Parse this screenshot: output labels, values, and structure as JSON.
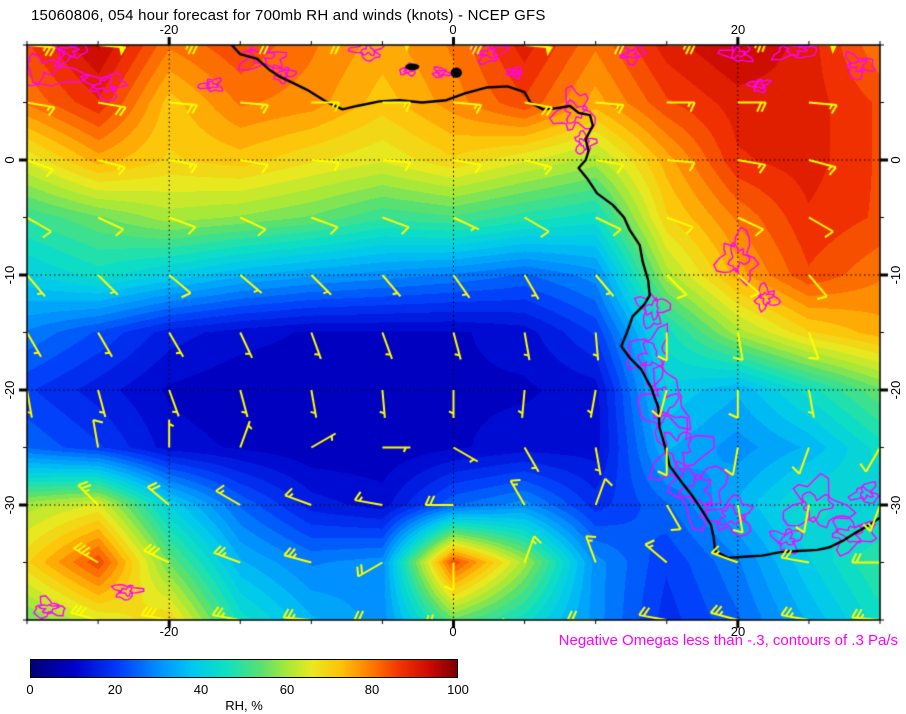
{
  "title": "15060806, 054 hour forecast for 700mb RH and winds (knots) - NCEP GFS",
  "annotation": {
    "text": "Negative Omegas less than -.3, contours of .3 Pa/s",
    "color": "#ff00ff"
  },
  "colors": {
    "wind": "#ffff00",
    "omega": "#ff00ff",
    "coast": "#000000",
    "background": "#ffffff"
  },
  "axes": {
    "lon_ticks": [
      -20,
      0,
      20
    ],
    "lat_ticks": [
      0,
      -10,
      -20,
      -30
    ]
  },
  "colorbar": {
    "label": "RH, %",
    "ticks": [
      0,
      20,
      40,
      60,
      80,
      100
    ],
    "stops": [
      {
        "v": 0,
        "c": "#000078"
      },
      {
        "v": 10,
        "c": "#0000c8"
      },
      {
        "v": 20,
        "c": "#0038f8"
      },
      {
        "v": 30,
        "c": "#0090ff"
      },
      {
        "v": 38,
        "c": "#00c8f0"
      },
      {
        "v": 46,
        "c": "#10e0c0"
      },
      {
        "v": 54,
        "c": "#58e070"
      },
      {
        "v": 60,
        "c": "#a8e838"
      },
      {
        "v": 66,
        "c": "#e8e820"
      },
      {
        "v": 73,
        "c": "#ffc008"
      },
      {
        "v": 80,
        "c": "#ff7800"
      },
      {
        "v": 87,
        "c": "#f03000"
      },
      {
        "v": 94,
        "c": "#c80800"
      },
      {
        "v": 100,
        "c": "#7c0000"
      }
    ]
  },
  "chart_data": {
    "type": "heatmap",
    "title": "15060806, 054 hour forecast for 700mb RH and winds (knots) - NCEP GFS",
    "field": "700mb relative humidity (%), NCEP GFS, 054 hour forecast, init 15060806",
    "winds_units": "knots",
    "omega_threshold": -0.3,
    "omega_contour_interval_pa_s": 0.3,
    "lon_range": [
      -30,
      30
    ],
    "lat_range": [
      -40,
      10
    ],
    "lon_grid": [
      -30,
      -25,
      -20,
      -15,
      -10,
      -5,
      0,
      5,
      10,
      15,
      20,
      25,
      30
    ],
    "lat_grid": [
      10,
      5,
      0,
      -5,
      -10,
      -15,
      -20,
      -25,
      -30,
      -35,
      -40
    ],
    "rh": [
      [
        85,
        95,
        80,
        85,
        80,
        75,
        80,
        90,
        80,
        90,
        95,
        90,
        80
      ],
      [
        80,
        88,
        72,
        80,
        78,
        72,
        78,
        85,
        75,
        85,
        90,
        90,
        85
      ],
      [
        65,
        75,
        70,
        72,
        68,
        65,
        70,
        65,
        60,
        75,
        88,
        90,
        85
      ],
      [
        50,
        55,
        60,
        58,
        55,
        50,
        52,
        48,
        45,
        70,
        80,
        88,
        85
      ],
      [
        40,
        45,
        40,
        35,
        32,
        30,
        28,
        25,
        30,
        60,
        75,
        85,
        80
      ],
      [
        28,
        22,
        15,
        12,
        10,
        10,
        10,
        12,
        20,
        45,
        60,
        70,
        75
      ],
      [
        20,
        15,
        10,
        8,
        8,
        8,
        10,
        10,
        12,
        40,
        35,
        45,
        55
      ],
      [
        25,
        20,
        12,
        10,
        8,
        8,
        10,
        12,
        12,
        35,
        30,
        35,
        45
      ],
      [
        60,
        65,
        40,
        25,
        15,
        12,
        25,
        30,
        18,
        25,
        35,
        45,
        40
      ],
      [
        70,
        85,
        55,
        35,
        28,
        30,
        85,
        60,
        30,
        20,
        28,
        40,
        50
      ],
      [
        55,
        65,
        70,
        45,
        35,
        30,
        55,
        45,
        30,
        18,
        25,
        35,
        45
      ]
    ],
    "wind_dir": [
      [
        95,
        95,
        90,
        90,
        90,
        85,
        90,
        95,
        90,
        90,
        85,
        90,
        90
      ],
      [
        100,
        100,
        95,
        95,
        90,
        90,
        95,
        100,
        95,
        90,
        90,
        95,
        95
      ],
      [
        110,
        105,
        100,
        100,
        95,
        95,
        100,
        105,
        100,
        95,
        100,
        105,
        110
      ],
      [
        120,
        115,
        110,
        115,
        110,
        110,
        115,
        120,
        115,
        110,
        115,
        120,
        125
      ],
      [
        140,
        135,
        130,
        130,
        135,
        140,
        145,
        150,
        140,
        135,
        130,
        140,
        150
      ],
      [
        150,
        150,
        150,
        155,
        160,
        160,
        165,
        170,
        175,
        180,
        170,
        160,
        150
      ],
      [
        170,
        165,
        160,
        165,
        170,
        175,
        180,
        185,
        190,
        195,
        180,
        170,
        160
      ],
      [
        340,
        350,
        0,
        20,
        60,
        90,
        120,
        150,
        170,
        180,
        190,
        200,
        210
      ],
      [
        315,
        315,
        310,
        300,
        290,
        280,
        270,
        330,
        20,
        150,
        170,
        190,
        200
      ],
      [
        305,
        300,
        295,
        290,
        285,
        240,
        180,
        20,
        340,
        310,
        290,
        280,
        270
      ],
      [
        290,
        285,
        280,
        280,
        275,
        270,
        260,
        250,
        270,
        280,
        285,
        280,
        275
      ]
    ],
    "wind_spd": [
      [
        25,
        50,
        25,
        20,
        20,
        50,
        25,
        50,
        20,
        25,
        25,
        50,
        20
      ],
      [
        15,
        20,
        20,
        15,
        15,
        15,
        15,
        20,
        15,
        15,
        20,
        15,
        15
      ],
      [
        10,
        15,
        15,
        10,
        10,
        10,
        10,
        15,
        10,
        10,
        15,
        15,
        10
      ],
      [
        10,
        10,
        10,
        10,
        10,
        10,
        5,
        10,
        10,
        10,
        10,
        10,
        10
      ],
      [
        5,
        5,
        10,
        5,
        5,
        5,
        5,
        5,
        5,
        10,
        10,
        10,
        10
      ],
      [
        5,
        5,
        5,
        5,
        5,
        5,
        5,
        5,
        5,
        10,
        10,
        10,
        5
      ],
      [
        5,
        5,
        5,
        5,
        5,
        5,
        5,
        5,
        5,
        10,
        10,
        5,
        5
      ],
      [
        10,
        10,
        5,
        5,
        5,
        5,
        5,
        5,
        5,
        10,
        10,
        10,
        10
      ],
      [
        20,
        25,
        20,
        15,
        15,
        15,
        20,
        15,
        10,
        10,
        10,
        10,
        15
      ],
      [
        30,
        35,
        30,
        25,
        25,
        20,
        10,
        15,
        15,
        15,
        15,
        20,
        20
      ],
      [
        25,
        30,
        30,
        25,
        25,
        20,
        20,
        20,
        20,
        20,
        25,
        25,
        25
      ]
    ],
    "omega_regions": [
      [
        -29,
        8,
        2.2,
        1.8
      ],
      [
        -27,
        9.5,
        1,
        0.8
      ],
      [
        -24.5,
        6.5,
        1.2,
        1
      ],
      [
        -17,
        6.5,
        0.7,
        0.5
      ],
      [
        -13.5,
        9,
        1.4,
        1.1
      ],
      [
        -12,
        7.5,
        0.7,
        0.6
      ],
      [
        -6,
        9.5,
        0.9,
        0.7
      ],
      [
        -3.2,
        7.8,
        0.5,
        0.4
      ],
      [
        -0.9,
        7.6,
        0.5,
        0.4
      ],
      [
        2.5,
        9.3,
        1,
        0.7
      ],
      [
        4.3,
        7.6,
        0.5,
        0.4
      ],
      [
        8.5,
        4.2,
        1.2,
        1.6
      ],
      [
        9.2,
        1.5,
        0.6,
        0.8
      ],
      [
        12.5,
        9.2,
        0.9,
        0.6
      ],
      [
        20,
        9.3,
        0.9,
        0.7
      ],
      [
        24,
        9.6,
        1.3,
        0.8
      ],
      [
        28.5,
        8.2,
        0.9,
        0.9
      ],
      [
        21.5,
        6.5,
        0.6,
        0.5
      ],
      [
        20,
        -8.5,
        1.2,
        1.8
      ],
      [
        22,
        -12,
        0.7,
        0.9
      ],
      [
        14,
        -13,
        0.9,
        1.3
      ],
      [
        13.8,
        -17,
        1.3,
        2
      ],
      [
        14.8,
        -21,
        1.5,
        2.2
      ],
      [
        15.8,
        -25,
        1.7,
        2.6
      ],
      [
        17.2,
        -28.8,
        1.8,
        2.2
      ],
      [
        19.5,
        -31,
        1.4,
        1.4
      ],
      [
        25.5,
        -30,
        1.9,
        1.9
      ],
      [
        28,
        -32.5,
        1.4,
        1.3
      ],
      [
        23.5,
        -33,
        0.9,
        0.9
      ],
      [
        29,
        -29,
        0.8,
        0.8
      ],
      [
        -28.5,
        -39,
        1,
        0.7
      ],
      [
        -23,
        -37.5,
        0.8,
        0.6
      ]
    ],
    "coastline": [
      [
        -15.6,
        10
      ],
      [
        -15.0,
        9.2
      ],
      [
        -13.8,
        8.8
      ],
      [
        -13.0,
        7.9
      ],
      [
        -12.3,
        7.3
      ],
      [
        -11.3,
        6.7
      ],
      [
        -10.3,
        6.1
      ],
      [
        -9.0,
        5.1
      ],
      [
        -7.8,
        4.4
      ],
      [
        -6.8,
        4.7
      ],
      [
        -5.2,
        5.1
      ],
      [
        -3.8,
        5.2
      ],
      [
        -2.2,
        5.0
      ],
      [
        -0.5,
        5.2
      ],
      [
        0.8,
        5.8
      ],
      [
        2.3,
        6.3
      ],
      [
        3.8,
        6.4
      ],
      [
        5.0,
        5.9
      ],
      [
        5.4,
        5.0
      ],
      [
        6.3,
        4.4
      ],
      [
        7.2,
        4.5
      ],
      [
        8.2,
        4.7
      ],
      [
        8.8,
        4.1
      ],
      [
        9.6,
        3.9
      ],
      [
        9.8,
        3.0
      ],
      [
        9.3,
        1.8
      ],
      [
        9.5,
        0.8
      ],
      [
        9.3,
        0.0
      ],
      [
        8.8,
        -0.7
      ],
      [
        9.4,
        -1.6
      ],
      [
        10.1,
        -2.9
      ],
      [
        11.2,
        -3.9
      ],
      [
        12.0,
        -5.0
      ],
      [
        12.4,
        -6.1
      ],
      [
        13.1,
        -7.4
      ],
      [
        13.3,
        -8.8
      ],
      [
        13.7,
        -10.5
      ],
      [
        13.8,
        -11.8
      ],
      [
        13.4,
        -12.6
      ],
      [
        12.6,
        -13.6
      ],
      [
        12.2,
        -15.0
      ],
      [
        11.8,
        -16.2
      ],
      [
        12.4,
        -17.2
      ],
      [
        13.2,
        -18.2
      ],
      [
        13.9,
        -19.8
      ],
      [
        14.4,
        -21.5
      ],
      [
        14.5,
        -23.3
      ],
      [
        14.9,
        -25.0
      ],
      [
        15.2,
        -26.6
      ],
      [
        16.1,
        -28.1
      ],
      [
        16.8,
        -29.2
      ],
      [
        17.5,
        -30.5
      ],
      [
        18.1,
        -31.7
      ],
      [
        18.3,
        -32.8
      ],
      [
        18.4,
        -34.0
      ],
      [
        19.3,
        -34.6
      ],
      [
        20.4,
        -34.5
      ],
      [
        21.7,
        -34.4
      ],
      [
        23.0,
        -34.1
      ],
      [
        24.2,
        -34.0
      ],
      [
        25.6,
        -33.9
      ],
      [
        26.4,
        -33.7
      ],
      [
        27.4,
        -33.1
      ],
      [
        28.3,
        -32.4
      ],
      [
        29.3,
        -31.7
      ],
      [
        30.0,
        -31.1
      ]
    ],
    "lakes": [
      [
        -2.9,
        8.1,
        0.5,
        0.3
      ],
      [
        0.2,
        7.6,
        0.4,
        0.45
      ]
    ]
  }
}
